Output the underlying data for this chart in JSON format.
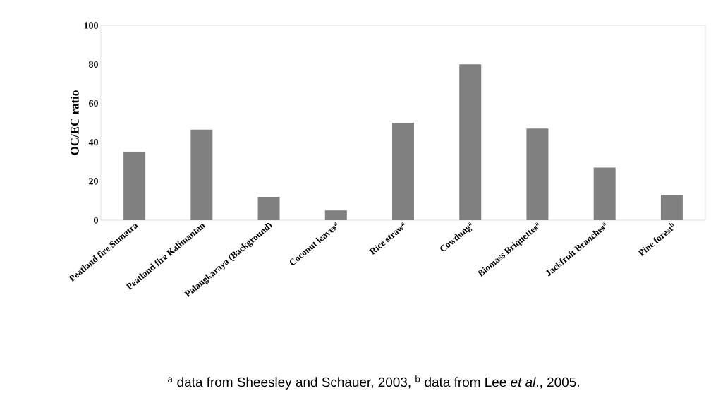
{
  "chart_data": {
    "type": "bar",
    "ylabel": "OC/EC ratio",
    "categories": [
      "Peatland fire Sumatra",
      "Peatland fire Kalimantan",
      "Palangkaraya (Background)",
      "Coconut leaves$^{a}$",
      "Rice straw$^{a}$",
      "Cowdung$^{a}$",
      "Biomass Briquettes$^{a}$",
      "Jackfruit Branches$^{a}$",
      "Pine forest$^{b}$"
    ],
    "values": [
      35,
      46.5,
      12,
      5,
      50,
      80,
      47,
      27,
      13
    ],
    "color": "#808080",
    "ylim": [
      0,
      100
    ],
    "yticks": [
      0,
      20,
      40,
      60,
      80,
      100
    ],
    "grid": false,
    "annotations": [
      "$^{a}$ data from Sheesley and Schauer, 2003, $^{b}$ data from Lee *et al*., 2005."
    ]
  }
}
